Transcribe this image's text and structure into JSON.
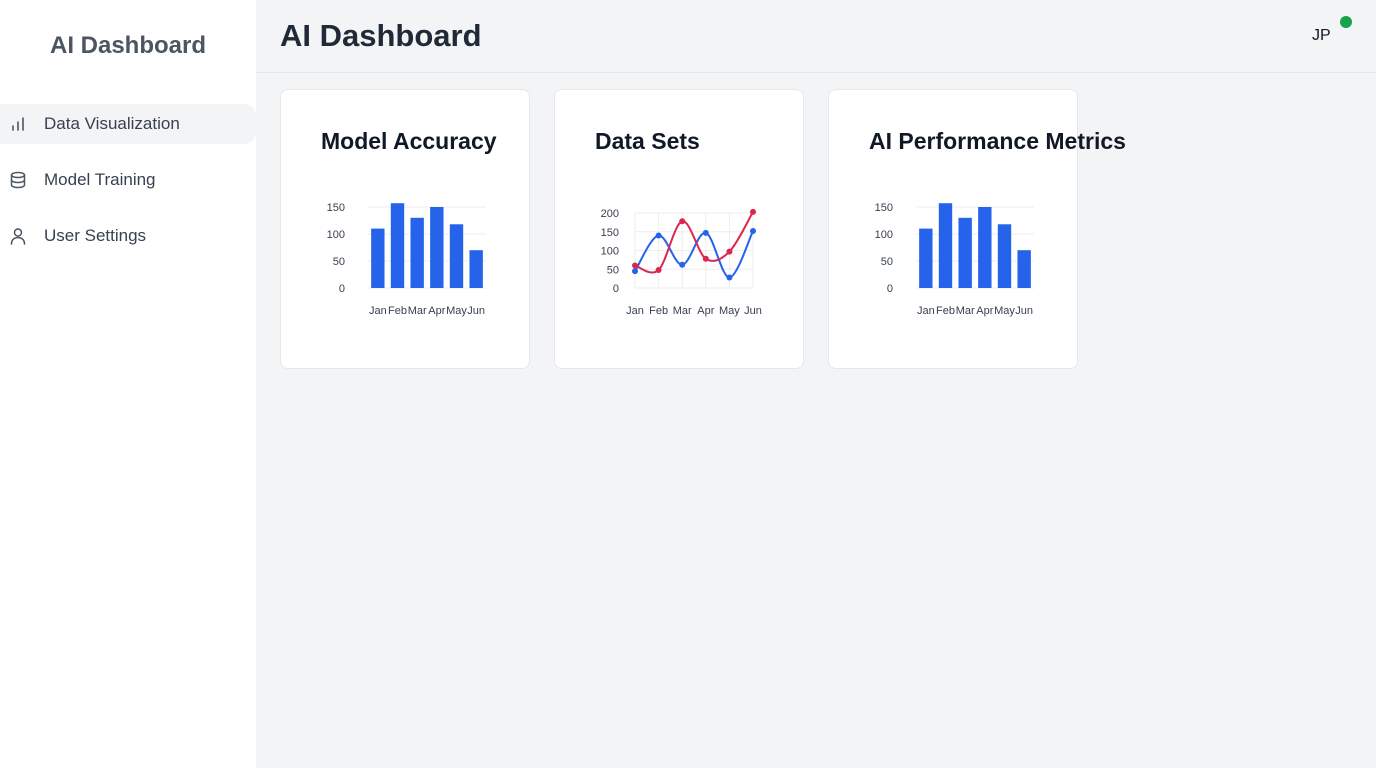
{
  "sidebar": {
    "brand": "AI Dashboard",
    "items": [
      {
        "label": "Data Visualization",
        "icon": "bar-chart-icon",
        "active": true
      },
      {
        "label": "Model Training",
        "icon": "database-icon",
        "active": false
      },
      {
        "label": "User Settings",
        "icon": "user-icon",
        "active": false
      }
    ]
  },
  "header": {
    "title": "AI Dashboard",
    "user_initials": "JP",
    "status_color": "#16a34a"
  },
  "cards": [
    {
      "title": "Model Accuracy"
    },
    {
      "title": "Data Sets"
    },
    {
      "title": "AI Performance Metrics"
    }
  ],
  "chart_data": [
    {
      "type": "bar",
      "categories": [
        "Jan",
        "Feb",
        "Mar",
        "Apr",
        "May",
        "Jun"
      ],
      "values": [
        110,
        157,
        130,
        150,
        118,
        70
      ],
      "ylim": [
        0,
        150
      ],
      "yticks": [
        0,
        50,
        100,
        150
      ],
      "color": "#2563eb",
      "grid": true
    },
    {
      "type": "line",
      "categories": [
        "Jan",
        "Feb",
        "Mar",
        "Apr",
        "May",
        "Jun"
      ],
      "series": [
        {
          "values": [
            45,
            140,
            62,
            147,
            28,
            152
          ],
          "color": "#2563eb"
        },
        {
          "values": [
            60,
            48,
            178,
            78,
            97,
            203
          ],
          "color": "#dc2650"
        }
      ],
      "ylim": [
        0,
        200
      ],
      "yticks": [
        0,
        50,
        100,
        150,
        200
      ],
      "grid": true
    },
    {
      "type": "bar",
      "categories": [
        "Jan",
        "Feb",
        "Mar",
        "Apr",
        "May",
        "Jun"
      ],
      "values": [
        110,
        157,
        130,
        150,
        118,
        70
      ],
      "ylim": [
        0,
        150
      ],
      "yticks": [
        0,
        50,
        100,
        150
      ],
      "color": "#2563eb",
      "grid": true
    }
  ]
}
